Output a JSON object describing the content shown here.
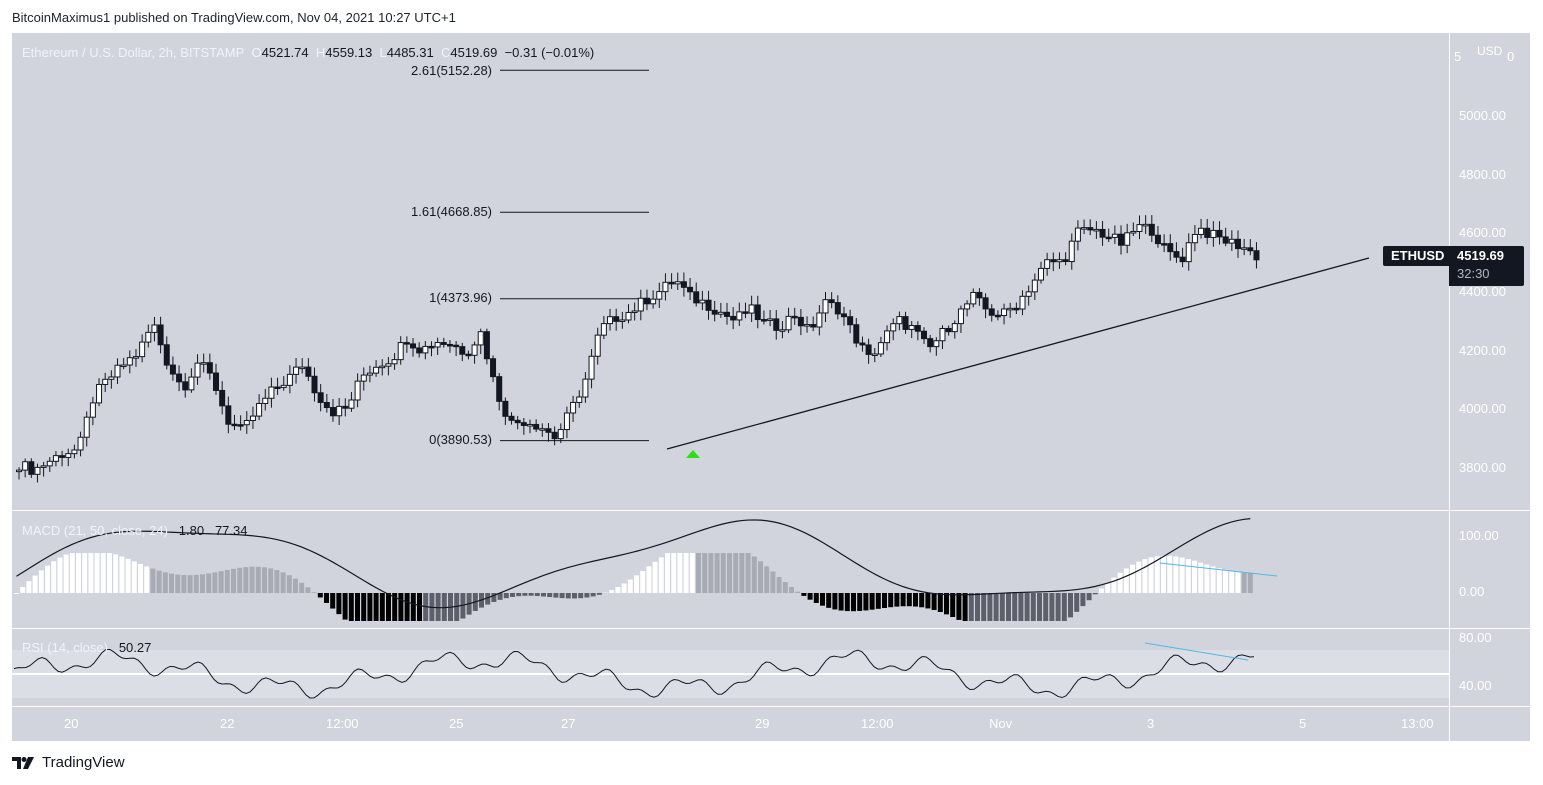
{
  "header": {
    "published": "BitcoinMaximus1 published on TradingView.com, Nov 04, 2021 10:27 UTC+1"
  },
  "legend": {
    "symbol": "Ethereum / U.S. Dollar, 2h, BITSTAMP",
    "open_label": "O",
    "open": "4521.74",
    "high_label": "H",
    "high": "4559.13",
    "low_label": "L",
    "low": "4485.31",
    "close_label": "C",
    "close": "4519.69",
    "change": "−0.31 (−0.01%)"
  },
  "price_axis": {
    "currency": "USD",
    "top_partial_left": "5",
    "top_partial_right": "0",
    "ticks": [
      "5000.00",
      "4800.00",
      "4600.00",
      "4400.00",
      "4200.00",
      "4000.00",
      "3800.00"
    ]
  },
  "price_tag": {
    "symbol": "ETHUSD",
    "price": "4519.69",
    "countdown": "32:30"
  },
  "fib_levels": [
    {
      "label": "2.61(5152.28)",
      "price": 5152.28
    },
    {
      "label": "1.61(4668.85)",
      "price": 4668.85
    },
    {
      "label": "1(4373.96)",
      "price": 4373.96
    },
    {
      "label": "0(3890.53)",
      "price": 3890.53
    }
  ],
  "macd": {
    "title": "MACD (21, 50, close, 24)",
    "value1": "1.80",
    "value2": "77.34",
    "ticks": [
      "100.00",
      "0.00"
    ]
  },
  "rsi": {
    "title": "RSI (14, close)",
    "value": "50.27",
    "ticks": [
      "80.00",
      "40.00"
    ]
  },
  "time_axis": {
    "ticks": [
      "20",
      "22",
      "12:00",
      "25",
      "27",
      "29",
      "12:00",
      "Nov",
      "3",
      "5",
      "13:00"
    ]
  },
  "footer": {
    "brand": "TradingView"
  },
  "colors": {
    "background": "#d1d4dc",
    "up_body": "#ffffff",
    "down_body": "#131722",
    "trendline": "#131722",
    "divergence": "#4fb8e8",
    "signal_arrow": "#26e30f"
  },
  "chart_data": {
    "type": "candlestick",
    "title": "Ethereum / U.S. Dollar, 2h, BITSTAMP",
    "ohlc_last": {
      "open": 4521.74,
      "high": 4559.13,
      "low": 4485.31,
      "close": 4519.69
    },
    "ylabel": "USD",
    "ylim": [
      3720,
      5200
    ],
    "x_tick_labels": [
      "20",
      "22",
      "12:00",
      "25",
      "27",
      "29",
      "12:00",
      "Nov",
      "3",
      "5",
      "13:00"
    ],
    "y_tick_labels": [
      "5000.00",
      "4800.00",
      "4600.00",
      "4400.00",
      "4200.00",
      "4000.00",
      "3800.00"
    ],
    "annotations": {
      "fibonacci": [
        {
          "ratio": 2.61,
          "price": 5152.28
        },
        {
          "ratio": 1.61,
          "price": 4668.85
        },
        {
          "ratio": 1,
          "price": 4373.96
        },
        {
          "ratio": 0,
          "price": 3890.53
        }
      ],
      "ascending_support_line": {
        "from_price": 3870,
        "to_price": 4515
      },
      "buy_arrow_near": 3890,
      "bearish_divergence": [
        "MACD histogram",
        "RSI"
      ]
    },
    "approx_close_path": [
      3810,
      3790,
      3820,
      3850,
      3860,
      4040,
      4100,
      4150,
      4190,
      4290,
      4150,
      4070,
      4160,
      4100,
      3960,
      3920,
      4000,
      4060,
      4100,
      4150,
      4050,
      3990,
      4000,
      4110,
      4150,
      4170,
      4240,
      4200,
      4230,
      4220,
      4190,
      4260,
      4060,
      3950,
      3960,
      3940,
      3900,
      3990,
      4100,
      4270,
      4310,
      4330,
      4370,
      4400,
      4440,
      4380,
      4360,
      4330,
      4300,
      4340,
      4290,
      4280,
      4320,
      4260,
      4360,
      4340,
      4250,
      4170,
      4240,
      4300,
      4270,
      4200,
      4260,
      4320,
      4380,
      4330,
      4320,
      4360,
      4430,
      4500,
      4500,
      4600,
      4610,
      4590,
      4560,
      4620,
      4610,
      4530,
      4510,
      4620,
      4590,
      4570,
      4555,
      4519.69
    ],
    "indicators": [
      {
        "name": "MACD (21, 50, close, 24)",
        "values": {
          "macd": 1.8,
          "signal": 77.34
        },
        "ylim": [
          -40,
          130
        ],
        "ticks": [
          100,
          0
        ]
      },
      {
        "name": "RSI (14, close)",
        "value": 50.27,
        "ylim": [
          30,
          85
        ],
        "ticks": [
          80,
          40
        ],
        "band": [
          30,
          70
        ]
      }
    ]
  }
}
